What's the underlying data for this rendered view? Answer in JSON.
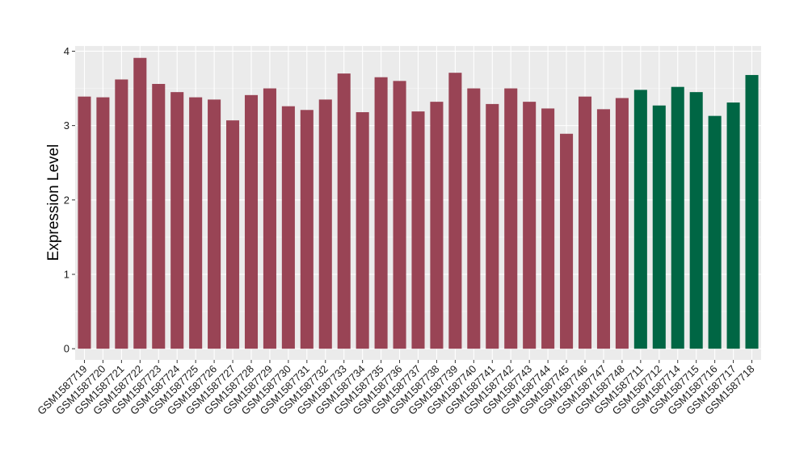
{
  "chart_data": {
    "type": "bar",
    "title": "",
    "xlabel": "",
    "ylabel": "Expression Level",
    "ylim": [
      -0.15,
      4.07
    ],
    "yticks": [
      0,
      1,
      2,
      3,
      4
    ],
    "grid": true,
    "background": "#ebebeb",
    "colors": {
      "group1": "#994455",
      "group2": "#006644"
    },
    "categories": [
      "GSM1587719",
      "GSM1587720",
      "GSM1587721",
      "GSM1587722",
      "GSM1587723",
      "GSM1587724",
      "GSM1587725",
      "GSM1587726",
      "GSM1587727",
      "GSM1587728",
      "GSM1587729",
      "GSM1587730",
      "GSM1587731",
      "GSM1587732",
      "GSM1587733",
      "GSM1587734",
      "GSM1587735",
      "GSM1587736",
      "GSM1587737",
      "GSM1587738",
      "GSM1587739",
      "GSM1587740",
      "GSM1587741",
      "GSM1587742",
      "GSM1587743",
      "GSM1587744",
      "GSM1587745",
      "GSM1587746",
      "GSM1587747",
      "GSM1587748",
      "GSM1587711",
      "GSM1587712",
      "GSM1587714",
      "GSM1587715",
      "GSM1587716",
      "GSM1587717",
      "GSM1587718"
    ],
    "values": [
      3.39,
      3.38,
      3.62,
      3.91,
      3.56,
      3.45,
      3.38,
      3.35,
      3.07,
      3.41,
      3.5,
      3.26,
      3.21,
      3.35,
      3.7,
      3.18,
      3.65,
      3.6,
      3.19,
      3.32,
      3.71,
      3.5,
      3.29,
      3.5,
      3.32,
      3.23,
      2.89,
      3.39,
      3.22,
      3.37,
      3.48,
      3.27,
      3.52,
      3.45,
      3.13,
      3.31,
      3.68
    ],
    "groups": [
      1,
      1,
      1,
      1,
      1,
      1,
      1,
      1,
      1,
      1,
      1,
      1,
      1,
      1,
      1,
      1,
      1,
      1,
      1,
      1,
      1,
      1,
      1,
      1,
      1,
      1,
      1,
      1,
      1,
      1,
      2,
      2,
      2,
      2,
      2,
      2,
      2
    ]
  }
}
